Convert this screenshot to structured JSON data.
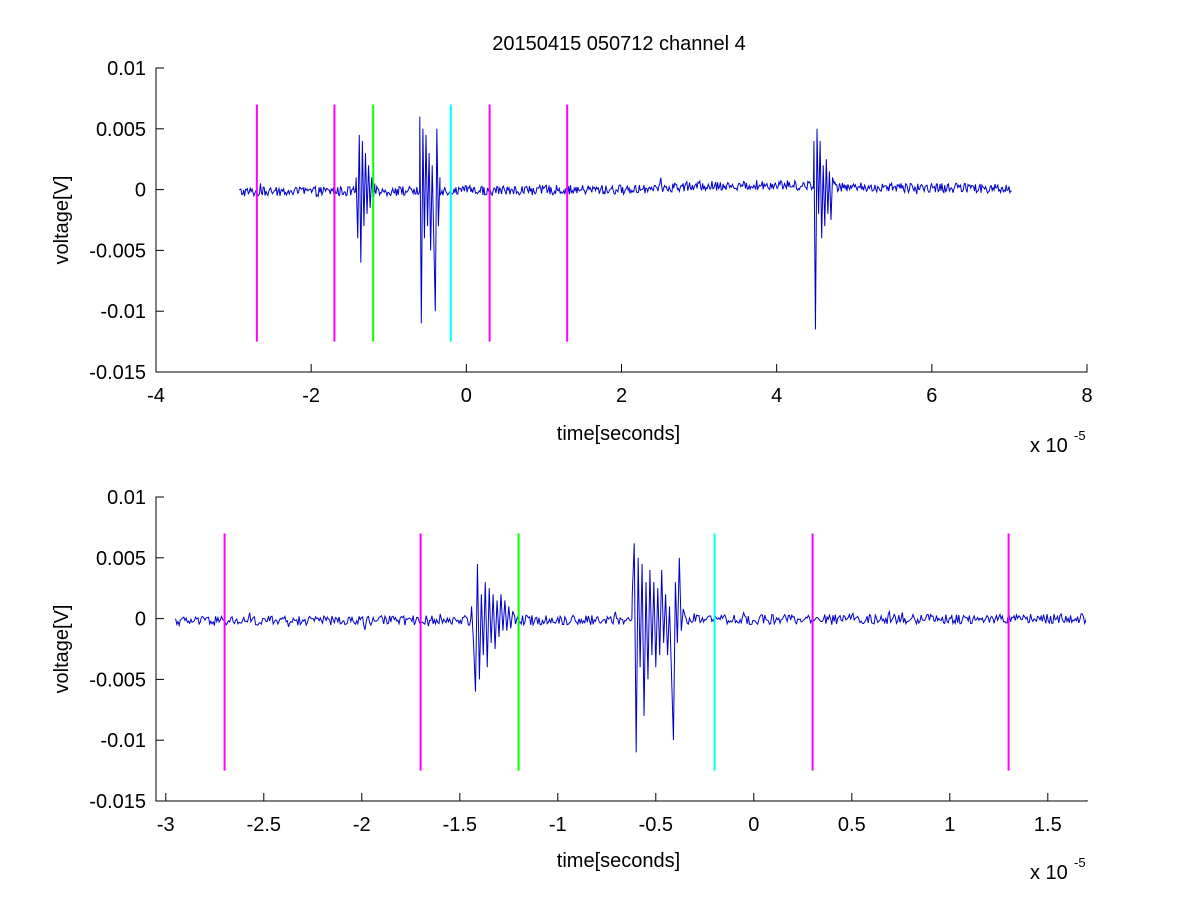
{
  "figure": {
    "title": "20150415 050712 channel 4"
  },
  "chart_data": [
    {
      "type": "line",
      "title": "20150415 050712 channel 4",
      "xlabel": "time[seconds]",
      "ylabel": "voltage[V]",
      "x_multiplier_label": "x 10",
      "x_multiplier_exp": "-5",
      "xlim": [
        -4,
        8
      ],
      "ylim": [
        -0.015,
        0.01
      ],
      "x_ticks": [
        "-4",
        "-2",
        "0",
        "2",
        "4",
        "6",
        "8"
      ],
      "y_ticks": [
        "0.01",
        "0.005",
        "0",
        "-0.005",
        "-0.01",
        "-0.015"
      ],
      "x_tick_values": [
        -4,
        -2,
        0,
        2,
        4,
        6,
        8
      ],
      "y_tick_values": [
        0.01,
        0.005,
        0,
        -0.005,
        -0.01,
        -0.015
      ],
      "grid": false,
      "series": [
        {
          "color": "#0000cc",
          "x_range": [
            -2.93,
            7.03
          ],
          "baseline": 0,
          "noise": 0.0004,
          "drift": [
            [
              -2.93,
              -0.0002
            ],
            [
              2.0,
              0.0
            ],
            [
              3.0,
              0.0003
            ],
            [
              4.0,
              0.0004
            ],
            [
              5.0,
              0.0002
            ],
            [
              7.03,
              0.0001
            ]
          ],
          "bursts": [
            {
              "x": [
                -1.42,
                -1.4,
                -1.38,
                -1.36,
                -1.34,
                -1.32,
                -1.3,
                -1.28,
                -1.26,
                -1.24,
                -1.22,
                -1.2,
                -1.18
              ],
              "y": [
                0.001,
                -0.004,
                0.0045,
                -0.006,
                0.004,
                -0.003,
                0.003,
                -0.002,
                0.002,
                -0.0015,
                0.001,
                -0.001,
                0.0005
              ]
            },
            {
              "x": [
                -0.6,
                -0.58,
                -0.56,
                -0.54,
                -0.52,
                -0.5,
                -0.48,
                -0.46,
                -0.44,
                -0.42,
                -0.4,
                -0.38,
                -0.36,
                -0.34
              ],
              "y": [
                0.006,
                -0.011,
                0.005,
                -0.004,
                0.0045,
                -0.003,
                0.003,
                -0.005,
                0.002,
                -0.004,
                -0.01,
                0.005,
                -0.003,
                0.001
              ]
            },
            {
              "x": [
                4.48,
                4.5,
                4.52,
                4.54,
                4.56,
                4.58,
                4.6,
                4.62,
                4.64,
                4.66,
                4.68,
                4.7,
                4.72,
                4.74
              ],
              "y": [
                0.004,
                -0.0115,
                0.005,
                -0.002,
                0.004,
                -0.004,
                0.002,
                -0.003,
                0.0025,
                -0.002,
                0.0015,
                -0.0025,
                0.001,
                0.0005
              ]
            }
          ]
        }
      ],
      "markers": [
        {
          "x": -2.7,
          "color": "#ff00ff",
          "y_top": 0.007,
          "y_bottom": -0.0125
        },
        {
          "x": -1.7,
          "color": "#ff00ff",
          "y_top": 0.007,
          "y_bottom": -0.0125
        },
        {
          "x": -1.2,
          "color": "#00ff00",
          "y_top": 0.007,
          "y_bottom": -0.0125
        },
        {
          "x": -0.2,
          "color": "#00ffff",
          "y_top": 0.007,
          "y_bottom": -0.0125
        },
        {
          "x": 0.3,
          "color": "#ff00ff",
          "y_top": 0.007,
          "y_bottom": -0.0125
        },
        {
          "x": 1.3,
          "color": "#ff00ff",
          "y_top": 0.007,
          "y_bottom": -0.0125
        }
      ]
    },
    {
      "type": "line",
      "title": "",
      "xlabel": "time[seconds]",
      "ylabel": "voltage[V]",
      "x_multiplier_label": "x 10",
      "x_multiplier_exp": "-5",
      "xlim": [
        -3.05,
        1.7
      ],
      "ylim": [
        -0.015,
        0.01
      ],
      "x_ticks": [
        "-3",
        "-2.5",
        "-2",
        "-1.5",
        "-1",
        "-0.5",
        "0",
        "0.5",
        "1",
        "1.5"
      ],
      "y_ticks": [
        "0.01",
        "0.005",
        "0",
        "-0.005",
        "-0.01",
        "-0.015"
      ],
      "x_tick_values": [
        -3,
        -2.5,
        -2,
        -1.5,
        -1,
        -0.5,
        0,
        0.5,
        1,
        1.5
      ],
      "y_tick_values": [
        0.01,
        0.005,
        0,
        -0.005,
        -0.01,
        -0.015
      ],
      "grid": false,
      "series": [
        {
          "color": "#0000cc",
          "x_range": [
            -2.95,
            1.7
          ],
          "baseline": 0,
          "noise": 0.0004,
          "drift": [
            [
              -2.95,
              -0.0002
            ],
            [
              1.7,
              0.0
            ]
          ],
          "bursts": [
            {
              "x": [
                -1.44,
                -1.43,
                -1.42,
                -1.41,
                -1.4,
                -1.39,
                -1.38,
                -1.37,
                -1.36,
                -1.35,
                -1.34,
                -1.33,
                -1.32,
                -1.31,
                -1.3,
                -1.29,
                -1.28,
                -1.27,
                -1.26,
                -1.25,
                -1.24,
                -1.23,
                -1.22
              ],
              "y": [
                0.001,
                -0.002,
                -0.006,
                0.0045,
                -0.005,
                0.002,
                -0.003,
                0.003,
                -0.004,
                0.0025,
                -0.002,
                0.002,
                -0.0025,
                0.0015,
                -0.0015,
                0.002,
                -0.001,
                0.0015,
                -0.001,
                0.001,
                -0.0008,
                0.0006,
                0.0002
              ]
            },
            {
              "x": [
                -0.62,
                -0.61,
                -0.6,
                -0.59,
                -0.58,
                -0.57,
                -0.56,
                -0.55,
                -0.54,
                -0.53,
                -0.52,
                -0.51,
                -0.5,
                -0.49,
                -0.48,
                -0.47,
                -0.46,
                -0.45,
                -0.44,
                -0.43,
                -0.42,
                -0.41,
                -0.4,
                -0.39,
                -0.38,
                -0.37,
                -0.36,
                -0.35
              ],
              "y": [
                0.002,
                0.0062,
                -0.011,
                0.005,
                -0.004,
                0.0045,
                -0.008,
                0.003,
                -0.005,
                0.004,
                -0.003,
                0.003,
                -0.004,
                0.0025,
                -0.003,
                0.004,
                -0.002,
                0.002,
                -0.003,
                0.001,
                -0.0045,
                -0.01,
                0.003,
                -0.002,
                0.005,
                -0.001,
                0.0008,
                0.0002
              ]
            }
          ]
        }
      ],
      "markers": [
        {
          "x": -2.7,
          "color": "#ff00ff",
          "y_top": 0.007,
          "y_bottom": -0.0125
        },
        {
          "x": -1.7,
          "color": "#ff00ff",
          "y_top": 0.007,
          "y_bottom": -0.0125
        },
        {
          "x": -1.2,
          "color": "#00ff00",
          "y_top": 0.007,
          "y_bottom": -0.0125
        },
        {
          "x": -0.2,
          "color": "#00ffff",
          "y_top": 0.007,
          "y_bottom": -0.0125
        },
        {
          "x": 0.3,
          "color": "#ff00ff",
          "y_top": 0.007,
          "y_bottom": -0.0125
        },
        {
          "x": 1.3,
          "color": "#ff00ff",
          "y_top": 0.007,
          "y_bottom": -0.0125
        }
      ]
    }
  ]
}
